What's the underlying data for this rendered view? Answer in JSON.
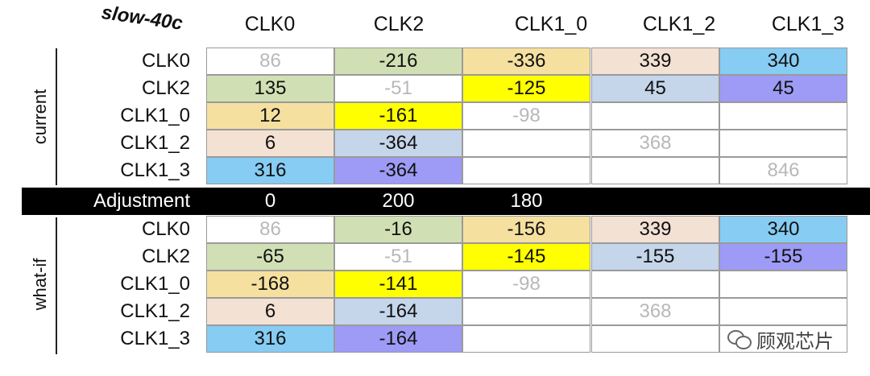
{
  "corner_label": "slow-40c",
  "columns": [
    "CLK0",
    "CLK2",
    "CLK1_0",
    "CLK1_2",
    "CLK1_3"
  ],
  "rows": [
    "CLK0",
    "CLK2",
    "CLK1_0",
    "CLK1_2",
    "CLK1_3"
  ],
  "groups": {
    "current": {
      "label": "current",
      "cells": [
        [
          {
            "v": "86",
            "bg": "#ffffff",
            "diag": true
          },
          {
            "v": "-216",
            "bg": "#d1e0b4"
          },
          {
            "v": "-336",
            "bg": "#f5e0a0"
          },
          {
            "v": "339",
            "bg": "#f3e1d4"
          },
          {
            "v": "340",
            "bg": "#86ccf3"
          }
        ],
        [
          {
            "v": "135",
            "bg": "#d1e0b4"
          },
          {
            "v": "-51",
            "bg": "#ffffff",
            "diag": true
          },
          {
            "v": "-125",
            "bg": "#ffff00"
          },
          {
            "v": "45",
            "bg": "#c5d5ea"
          },
          {
            "v": "45",
            "bg": "#9d9bf5"
          }
        ],
        [
          {
            "v": "12",
            "bg": "#f5e0a0"
          },
          {
            "v": "-161",
            "bg": "#ffff00"
          },
          {
            "v": "-98",
            "bg": "#ffffff",
            "diag": true
          },
          {
            "v": "",
            "bg": "#ffffff"
          },
          {
            "v": "",
            "bg": "#ffffff"
          }
        ],
        [
          {
            "v": "6",
            "bg": "#f3e1d4"
          },
          {
            "v": "-364",
            "bg": "#c5d5ea"
          },
          {
            "v": "",
            "bg": "#ffffff"
          },
          {
            "v": "368",
            "bg": "#ffffff",
            "diag": true
          },
          {
            "v": "",
            "bg": "#ffffff"
          }
        ],
        [
          {
            "v": "316",
            "bg": "#86ccf3"
          },
          {
            "v": "-364",
            "bg": "#9d9bf5"
          },
          {
            "v": "",
            "bg": "#ffffff"
          },
          {
            "v": "",
            "bg": "#ffffff"
          },
          {
            "v": "846",
            "bg": "#ffffff",
            "diag": true
          }
        ]
      ]
    },
    "whatif": {
      "label": "what-if",
      "cells": [
        [
          {
            "v": "86",
            "bg": "#ffffff",
            "diag": true
          },
          {
            "v": "-16",
            "bg": "#d1e0b4"
          },
          {
            "v": "-156",
            "bg": "#f5e0a0"
          },
          {
            "v": "339",
            "bg": "#f3e1d4"
          },
          {
            "v": "340",
            "bg": "#86ccf3"
          }
        ],
        [
          {
            "v": "-65",
            "bg": "#d1e0b4"
          },
          {
            "v": "-51",
            "bg": "#ffffff",
            "diag": true
          },
          {
            "v": "-145",
            "bg": "#ffff00"
          },
          {
            "v": "-155",
            "bg": "#c5d5ea"
          },
          {
            "v": "-155",
            "bg": "#9d9bf5"
          }
        ],
        [
          {
            "v": "-168",
            "bg": "#f5e0a0"
          },
          {
            "v": "-141",
            "bg": "#ffff00"
          },
          {
            "v": "-98",
            "bg": "#ffffff",
            "diag": true
          },
          {
            "v": "",
            "bg": "#ffffff"
          },
          {
            "v": "",
            "bg": "#ffffff"
          }
        ],
        [
          {
            "v": "6",
            "bg": "#f3e1d4"
          },
          {
            "v": "-164",
            "bg": "#c5d5ea"
          },
          {
            "v": "",
            "bg": "#ffffff"
          },
          {
            "v": "368",
            "bg": "#ffffff",
            "diag": true
          },
          {
            "v": "",
            "bg": "#ffffff"
          }
        ],
        [
          {
            "v": "316",
            "bg": "#86ccf3"
          },
          {
            "v": "-164",
            "bg": "#9d9bf5"
          },
          {
            "v": "",
            "bg": "#ffffff"
          },
          {
            "v": "",
            "bg": "#ffffff"
          },
          {
            "v": "",
            "bg": "#ffffff"
          }
        ]
      ]
    }
  },
  "adjustment": {
    "label": "Adjustment",
    "values": [
      "0",
      "200",
      "180",
      "",
      ""
    ]
  },
  "watermark": {
    "text": "顾观芯片",
    "icon": "wechat-icon"
  }
}
